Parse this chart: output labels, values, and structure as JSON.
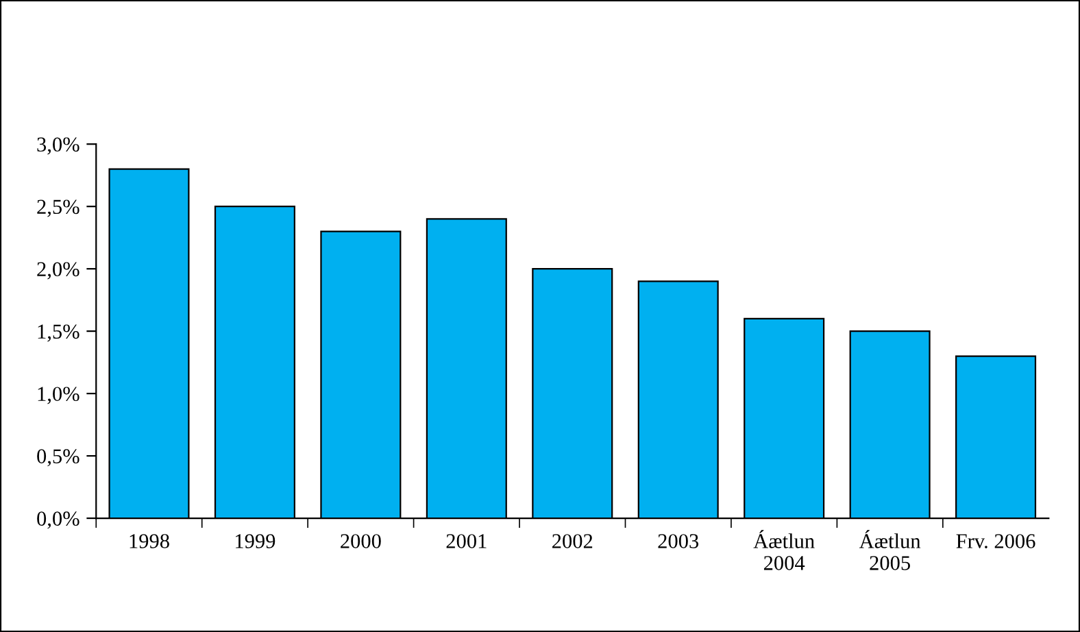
{
  "chart_data": {
    "type": "bar",
    "categories": [
      "1998",
      "1999",
      "2000",
      "2001",
      "2002",
      "2003",
      "Áætlun\n2004",
      "Áætlun\n2005",
      "Frv. 2006"
    ],
    "values": [
      2.8,
      2.5,
      2.3,
      2.4,
      2.0,
      1.9,
      1.6,
      1.5,
      1.3
    ],
    "color": "#00b0f0",
    "ylim": [
      0,
      3
    ],
    "yticks": [
      {
        "value": 0,
        "label": "0,0%"
      },
      {
        "value": 0.5,
        "label": "0,5%"
      },
      {
        "value": 1,
        "label": "1,0%"
      },
      {
        "value": 1.5,
        "label": "1,5%"
      },
      {
        "value": 2,
        "label": "2,0%"
      },
      {
        "value": 2.5,
        "label": "2,5%"
      },
      {
        "value": 3,
        "label": "3,0%"
      }
    ],
    "stacked": false
  }
}
